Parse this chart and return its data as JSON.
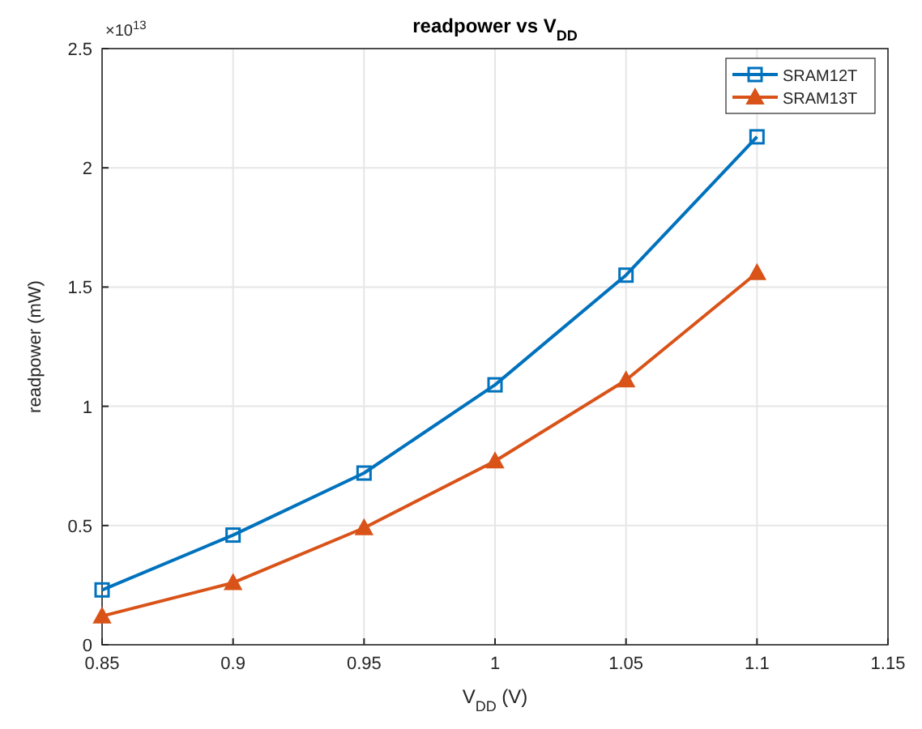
{
  "chart_data": {
    "type": "line",
    "title": "readpower vs V$_{DD}$",
    "xlabel": "V$_{DD}$ (V)",
    "ylabel": "readpower (mW)",
    "annotations": [
      "×10$^{13}$"
    ],
    "x": [
      0.85,
      0.9,
      0.95,
      1,
      1.05,
      1.1
    ],
    "series": [
      {
        "name": "SRAM12T",
        "color": "#0072bd",
        "marker": "square",
        "values": [
          0.23,
          0.46,
          0.72,
          1.09,
          1.55,
          2.13
        ]
      },
      {
        "name": "SRAM13T",
        "color": "#d95319",
        "marker": "triangle",
        "values": [
          0.12,
          0.26,
          0.49,
          0.77,
          1.11,
          1.56
        ]
      }
    ],
    "xlim": [
      0.85,
      1.15
    ],
    "xticks": [
      0.85,
      0.9,
      0.95,
      1,
      1.05,
      1.1,
      1.15
    ],
    "ylim": [
      0,
      2.5
    ],
    "yticks": [
      0,
      0.5,
      1,
      1.5,
      2,
      2.5
    ],
    "grid": true,
    "legend": "top right",
    "line_style": "solid"
  }
}
